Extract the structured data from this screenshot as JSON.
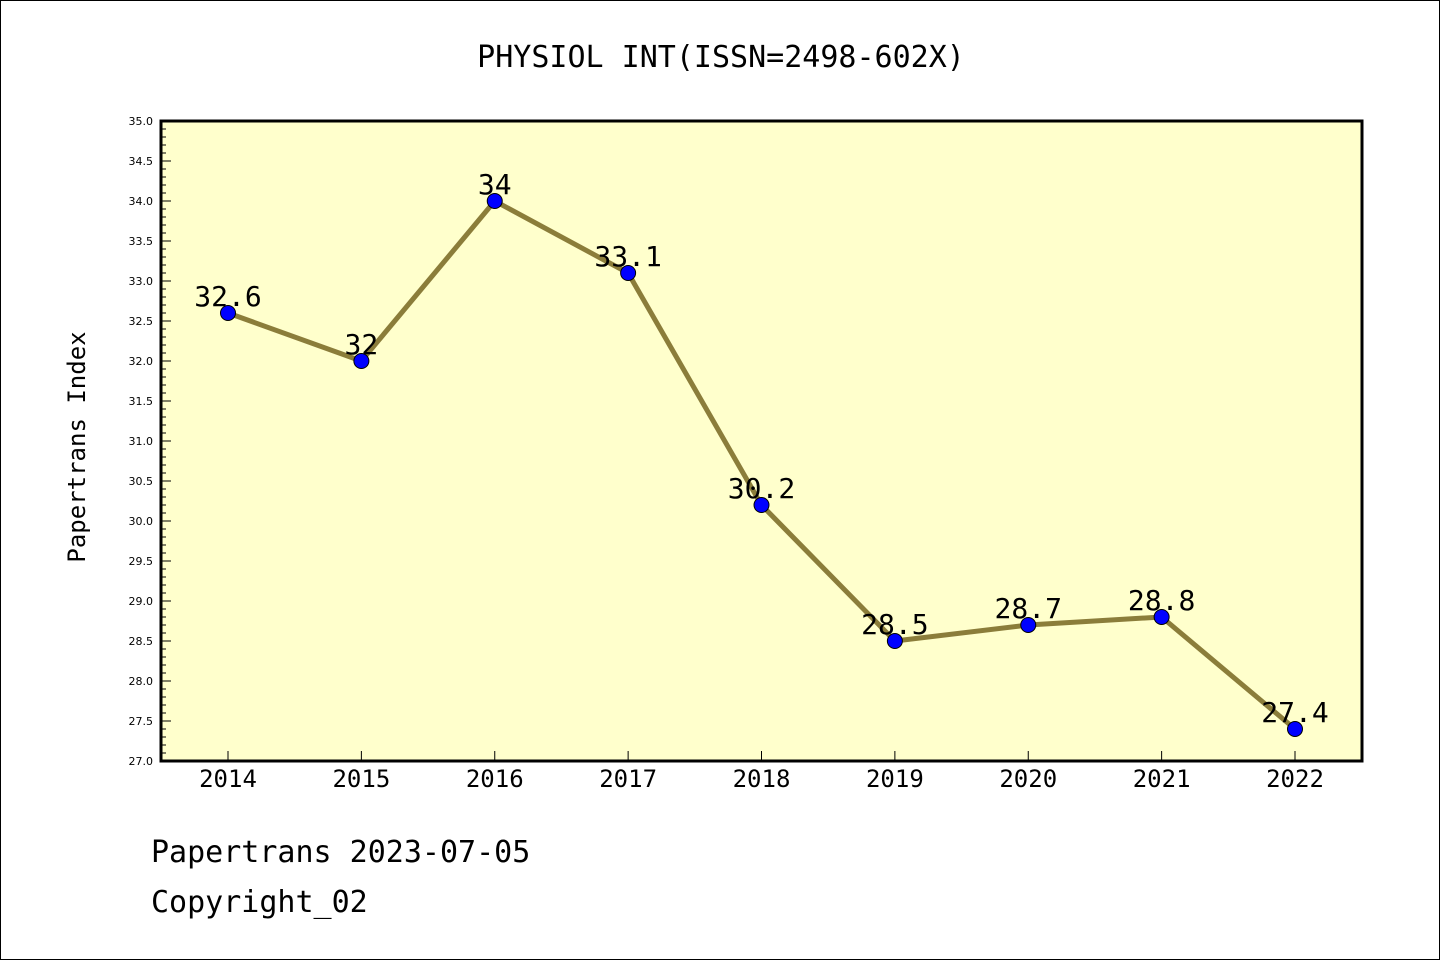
{
  "chart_data": {
    "type": "line",
    "title": "PHYSIOL INT(ISSN=2498-602X)",
    "xlabel": "",
    "ylabel": "Papertrans Index",
    "categories": [
      "2014",
      "2015",
      "2016",
      "2017",
      "2018",
      "2019",
      "2020",
      "2021",
      "2022"
    ],
    "values": [
      32.6,
      32.0,
      34.0,
      33.1,
      30.2,
      28.5,
      28.7,
      28.8,
      27.4
    ],
    "data_labels": [
      "32.6",
      "32",
      "34",
      "33.1",
      "30.2",
      "28.5",
      "28.7",
      "28.8",
      "27.4"
    ],
    "ylim": [
      27.0,
      35.0
    ],
    "yticks": [
      "27.0",
      "27.5",
      "28.0",
      "28.5",
      "29.0",
      "29.5",
      "30.0",
      "30.5",
      "31.0",
      "31.5",
      "32.0",
      "32.5",
      "33.0",
      "33.5",
      "34.0",
      "34.5",
      "35.0"
    ],
    "grid": false,
    "legend": "none",
    "colors": {
      "plot_background": "#ffffcc",
      "line": "#8b7d3a",
      "marker": "#0000ff"
    }
  },
  "footer": {
    "line1": "Papertrans 2023-07-05",
    "line2": "Copyright_02"
  }
}
